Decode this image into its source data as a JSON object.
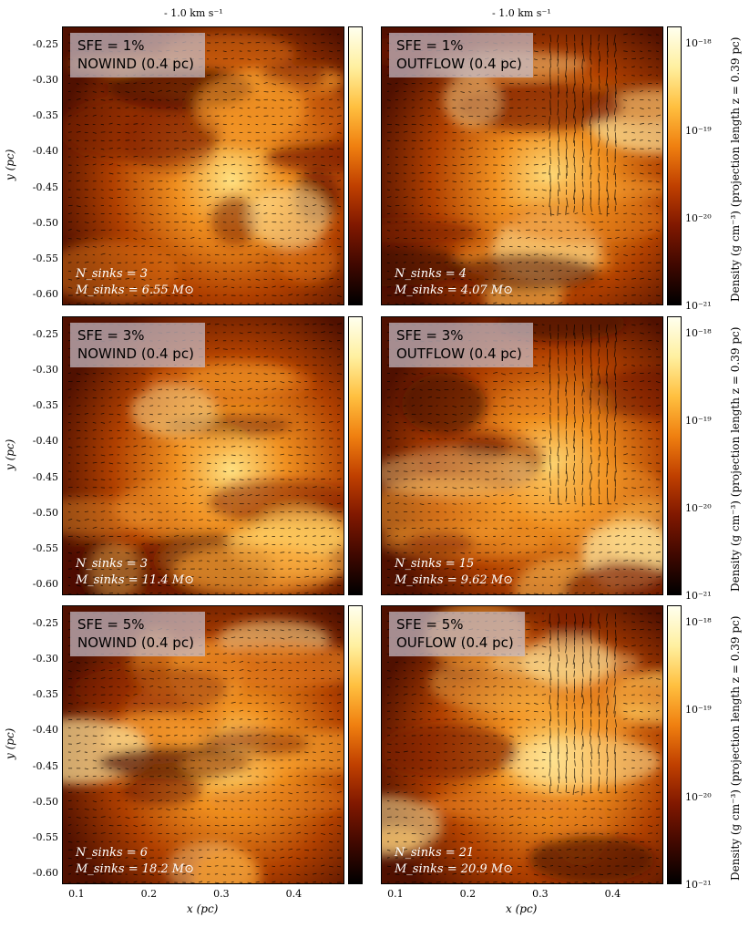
{
  "velocity_scale": [
    "- 1.0 km s⁻¹",
    "- 1.0 km s⁻¹"
  ],
  "panels": [
    {
      "label1": "SFE = 1%",
      "label2": "NOWIND (0.4 pc)",
      "nsinks": "N_sinks = 3",
      "msinks": "M_sinks = 6.55 M⊙",
      "variant": "nowind"
    },
    {
      "label1": "SFE = 1%",
      "label2": "OUTFLOW (0.4 pc)",
      "nsinks": "N_sinks = 4",
      "msinks": "M_sinks = 4.07 M⊙",
      "variant": "outflow"
    },
    {
      "label1": "SFE = 3%",
      "label2": "NOWIND (0.4 pc)",
      "nsinks": "N_sinks = 3",
      "msinks": "M_sinks = 11.4 M⊙",
      "variant": "nowind"
    },
    {
      "label1": "SFE = 3%",
      "label2": "OUTFLOW (0.4 pc)",
      "nsinks": "N_sinks = 15",
      "msinks": "M_sinks = 9.62 M⊙",
      "variant": "outflow"
    },
    {
      "label1": "SFE = 5%",
      "label2": "NOWIND (0.4 pc)",
      "nsinks": "N_sinks = 6",
      "msinks": "M_sinks = 18.2 M⊙",
      "variant": "nowind"
    },
    {
      "label1": "SFE = 5%",
      "label2": "OUFLOW (0.4 pc)",
      "nsinks": "N_sinks = 21",
      "msinks": "M_sinks = 20.9 M⊙",
      "variant": "outflow"
    }
  ],
  "colorbar": {
    "label": "Density (g cm⁻³)   (projection length z = 0.39 pc)",
    "ticks": [
      "10⁻¹⁸",
      "10⁻¹⁹",
      "10⁻²⁰",
      "10⁻²¹"
    ],
    "tick_values": [
      1e-18,
      1e-19,
      1e-20,
      1e-21
    ],
    "colors": [
      "#ffffee",
      "#fff0a0",
      "#ffc040",
      "#f08010",
      "#c04000",
      "#801800",
      "#400800",
      "#000000"
    ]
  },
  "chart_data": {
    "type": "heatmap",
    "xlabel": "x (pc)",
    "ylabel": "y (pc)",
    "xlim": [
      0.08,
      0.47
    ],
    "ylim": [
      -0.615,
      -0.225
    ],
    "xticks": [
      "0.1",
      "0.2",
      "0.3",
      "0.4"
    ],
    "xtick_values": [
      0.1,
      0.2,
      0.3,
      0.4
    ],
    "yticks": [
      "-0.25",
      "-0.30",
      "-0.35",
      "-0.40",
      "-0.45",
      "-0.50",
      "-0.55",
      "-0.60"
    ],
    "ytick_values": [
      -0.25,
      -0.3,
      -0.35,
      -0.4,
      -0.45,
      -0.5,
      -0.55,
      -0.6
    ]
  }
}
